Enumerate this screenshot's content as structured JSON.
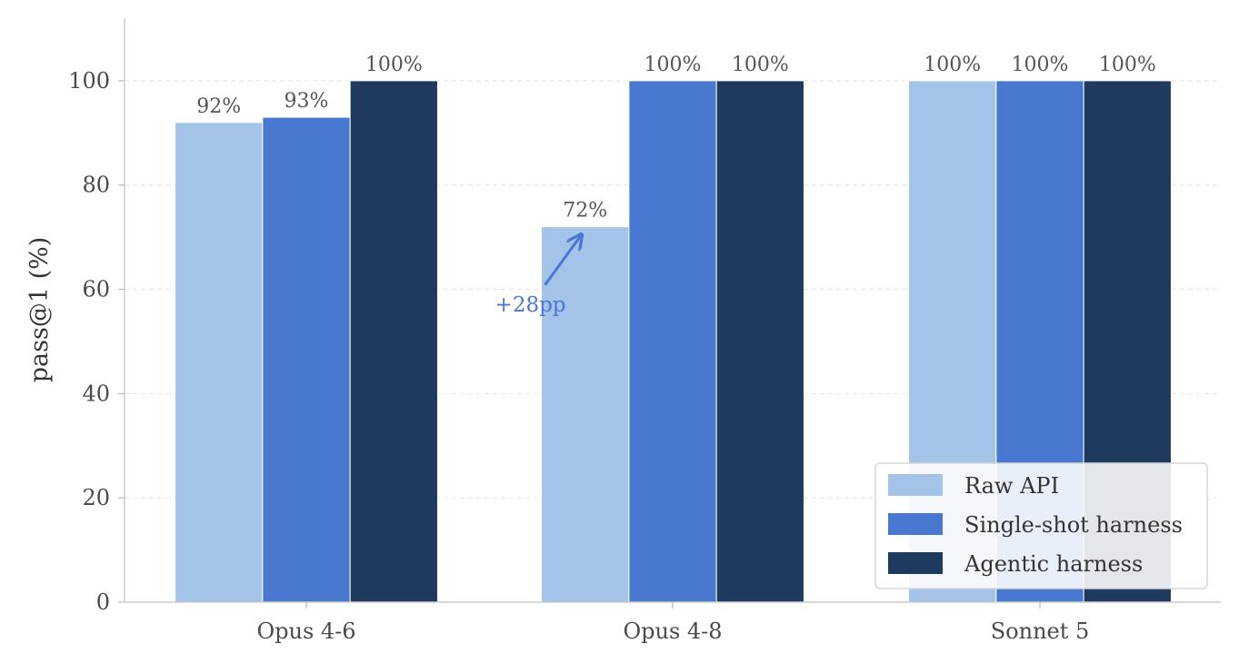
{
  "chart_data": {
    "type": "bar",
    "categories": [
      "Opus 4-6",
      "Opus 4-8",
      "Sonnet 5"
    ],
    "series": [
      {
        "name": "Raw API",
        "values": [
          92,
          72,
          100
        ],
        "labels": [
          "92%",
          "72%",
          "100%"
        ],
        "color": "#a4c3e9"
      },
      {
        "name": "Single-shot harness",
        "values": [
          93,
          100,
          100
        ],
        "labels": [
          "93%",
          "100%",
          "100%"
        ],
        "color": "#4878cf"
      },
      {
        "name": "Agentic harness",
        "values": [
          100,
          100,
          100
        ],
        "labels": [
          "100%",
          "100%",
          "100%"
        ],
        "color": "#1f3a5f"
      }
    ],
    "title": "",
    "xlabel": "",
    "ylabel": "pass@1 (%)",
    "ylim": [
      0,
      112
    ],
    "yticks": [
      0,
      20,
      40,
      60,
      80,
      100
    ],
    "ytick_labels": [
      "0",
      "20",
      "40",
      "60",
      "80",
      "100"
    ],
    "grid": "horizontal-dashed",
    "legend_position": "bottom-right",
    "annotations": [
      {
        "text": "+28pp",
        "category": "Opus 4-8",
        "series": "Raw API",
        "from_y": 61,
        "to_y": 72,
        "color": "#4878cf"
      }
    ]
  }
}
